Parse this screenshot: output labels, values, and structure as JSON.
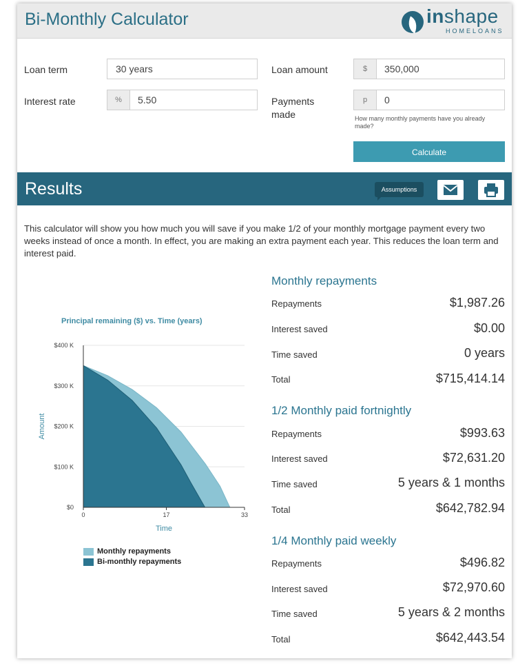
{
  "app": {
    "title": "Bi-Monthly Calculator"
  },
  "logo": {
    "word_in": "in",
    "word_shape": "shape",
    "sub": "HOMELOANS"
  },
  "form": {
    "loan_term_label": "Loan term",
    "loan_term_value": "30 years",
    "interest_rate_label": "Interest rate",
    "interest_rate_prefix": "%",
    "interest_rate_value": "5.50",
    "loan_amount_label": "Loan amount",
    "loan_amount_prefix": "$",
    "loan_amount_value": "350,000",
    "payments_made_label": "Payments made",
    "payments_made_prefix": "p",
    "payments_made_value": "0",
    "payments_made_help": "How many monthly payments have you already made?",
    "calculate_label": "Calculate"
  },
  "results": {
    "title": "Results",
    "assumptions_label": "Assumptions",
    "description": "This calculator will show you how much you will save if you make 1/2 of your monthly mortgage payment every two weeks instead of once a month. In effect, you are making an extra payment each year. This reduces the loan term and interest paid.",
    "sections": [
      {
        "title": "Monthly repayments",
        "rows": [
          {
            "label": "Repayments",
            "value": "$1,987.26"
          },
          {
            "label": "Interest saved",
            "value": "$0.00"
          },
          {
            "label": "Time saved",
            "value": "0 years"
          },
          {
            "label": "Total",
            "value": "$715,414.14"
          }
        ]
      },
      {
        "title": "1/2 Monthly paid fortnightly",
        "rows": [
          {
            "label": "Repayments",
            "value": "$993.63"
          },
          {
            "label": "Interest saved",
            "value": "$72,631.20"
          },
          {
            "label": "Time saved",
            "value": "5 years & 1 months"
          },
          {
            "label": "Total",
            "value": "$642,782.94"
          }
        ]
      },
      {
        "title": "1/4 Monthly paid weekly",
        "rows": [
          {
            "label": "Repayments",
            "value": "$496.82"
          },
          {
            "label": "Interest saved",
            "value": "$72,970.60"
          },
          {
            "label": "Time saved",
            "value": "5 years & 2 months"
          },
          {
            "label": "Total",
            "value": "$642,443.54"
          }
        ]
      }
    ]
  },
  "chart_data": {
    "type": "area",
    "title": "Principal remaining ($) vs. Time (years)",
    "xlabel": "Time",
    "ylabel": "Amount",
    "xlim": [
      0,
      33
    ],
    "ylim": [
      0,
      400000
    ],
    "x_ticks": [
      "0",
      "17",
      "33"
    ],
    "y_ticks": [
      "$0",
      "$100 K",
      "$200 K",
      "$300 K",
      "$400 K"
    ],
    "grid": true,
    "legend_position": "bottom",
    "series": [
      {
        "name": "Monthly repayments",
        "color": "#8cc4d4",
        "x": [
          0,
          5,
          10,
          15,
          20,
          25,
          28,
          30
        ],
        "values": [
          350000,
          325000,
          291000,
          246000,
          186000,
          107000,
          52000,
          0
        ]
      },
      {
        "name": "Bi-monthly repayments",
        "color": "#2b7590",
        "x": [
          0,
          5,
          10,
          15,
          20,
          22,
          24.9
        ],
        "values": [
          350000,
          314000,
          264000,
          196000,
          105000,
          61000,
          0
        ]
      }
    ]
  },
  "colors": {
    "brand": "#27667e",
    "accent": "#3d9bb1",
    "title": "#2b6f86"
  },
  "icons": {
    "email": "envelope-icon",
    "print": "printer-icon",
    "logo": "leaf-logo-icon"
  }
}
